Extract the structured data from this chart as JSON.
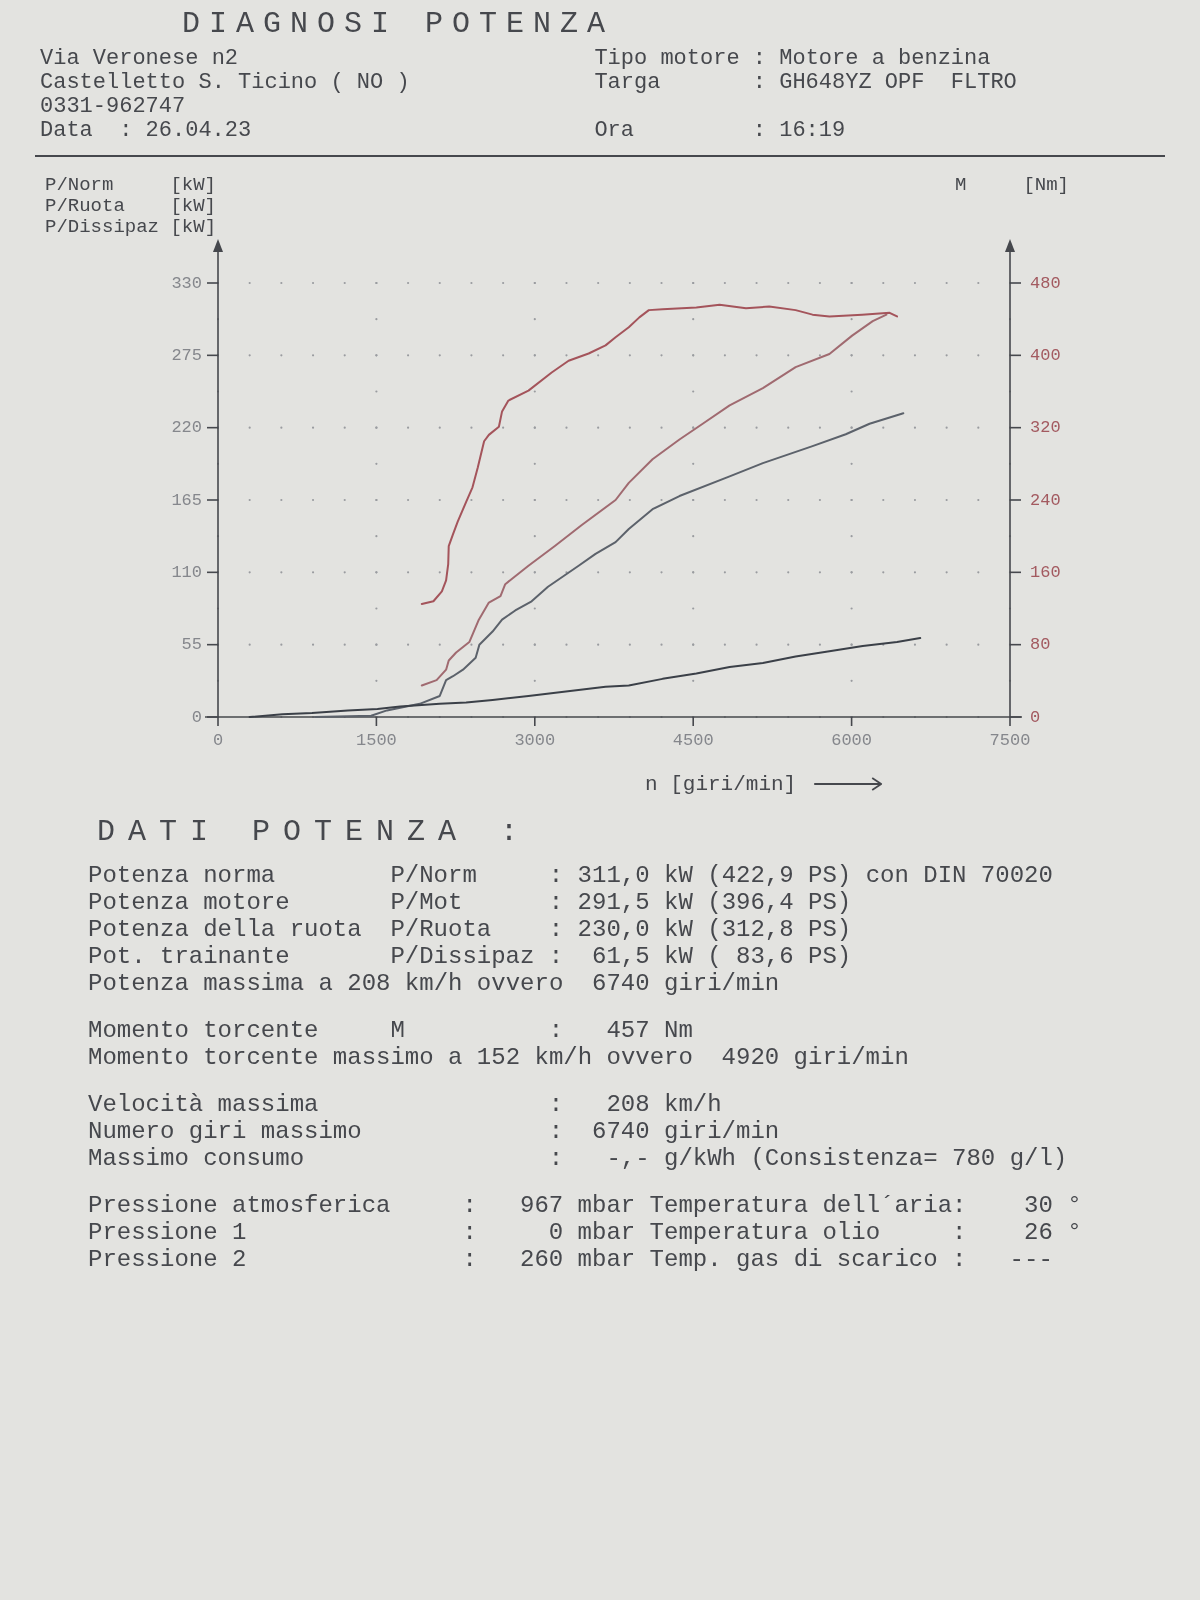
{
  "chart_data": {
    "type": "line",
    "title": "DIAGNOSI POTENZA",
    "subtitle": "Via Veronese n2                           Tipo motore : Motore a benzina\nCastelletto S. Ticino ( NO )              Targa       : GH648YZ OPF  FLTRO\n0331-962747\nData  : 26.04.23                          Ora         : 16:19",
    "xlabel": "n [giri/min]",
    "ylabel": "P/Norm     [kW]\nP/Ruota    [kW]\nP/Dissipaz [kW]",
    "y2label": "M     [Nm]",
    "xlim": [
      0,
      7500
    ],
    "xticks": [
      0,
      1500,
      3000,
      4500,
      6000,
      7500
    ],
    "ylim": [
      0,
      330
    ],
    "yticks": [
      0,
      55,
      110,
      165,
      220,
      275,
      330
    ],
    "y2lim": [
      0,
      480
    ],
    "y2ticks": [
      0,
      80,
      160,
      240,
      320,
      400,
      480
    ],
    "grid": true,
    "series": [
      {
        "color": "#a06a70",
        "x": [
          1930,
          2070,
          2160,
          2185,
          2255,
          2380,
          2470,
          2565,
          2675,
          2720,
          2940,
          3190,
          3445,
          3765,
          3890,
          4115,
          4370,
          4590,
          4845,
          5160,
          5470,
          5790,
          6005,
          6200,
          6330
        ],
        "values": [
          24,
          28,
          36,
          43,
          49,
          57,
          74,
          87,
          92,
          101,
          115,
          130,
          146,
          165,
          178,
          196,
          211,
          223,
          237,
          250,
          266,
          276,
          290,
          301,
          306
        ]
      },
      {
        "color": "#5c626b",
        "x": [
          920,
          1450,
          1600,
          1910,
          2100,
          2160,
          2225,
          2320,
          2440,
          2475,
          2600,
          2690,
          2815,
          2970,
          3125,
          3415,
          3575,
          3765,
          3890,
          4115,
          4370,
          4845,
          5160,
          5630,
          5945,
          6170,
          6490
        ],
        "values": [
          0,
          1,
          5,
          10,
          16,
          28,
          31,
          36,
          45,
          55,
          65,
          74,
          81,
          88,
          99,
          115,
          124,
          133,
          143,
          158,
          168,
          183,
          193,
          206,
          215,
          223,
          231
        ]
      },
      {
        "color": "#3b4048",
        "x": [
          300,
          610,
          890,
          1230,
          1510,
          1725,
          2100,
          2350,
          2600,
          2940,
          3255,
          3670,
          3890,
          4210,
          4530,
          4845,
          5160,
          5470,
          5790,
          6105,
          6430,
          6650
        ],
        "values": [
          0,
          2,
          3,
          5,
          6,
          8,
          10,
          11,
          13,
          16,
          19,
          23,
          24,
          29,
          33,
          38,
          41,
          46,
          50,
          54,
          57,
          60
        ]
      },
      {
        "color": "#a4545b",
        "axis": "y2",
        "x": [
          1930,
          2040,
          2120,
          2160,
          2180,
          2185,
          2225,
          2270,
          2350,
          2410,
          2460,
          2520,
          2565,
          2660,
          2690,
          2750,
          2940,
          3160,
          3320,
          3510,
          3670,
          3765,
          3890,
          3990,
          4080,
          4210,
          4530,
          4750,
          5000,
          5220,
          5470,
          5630,
          5790,
          6100,
          6360,
          6430
        ],
        "values": [
          125,
          128,
          139,
          151,
          169,
          189,
          202,
          216,
          238,
          254,
          276,
          305,
          312,
          321,
          338,
          350,
          361,
          381,
          394,
          402,
          411,
          420,
          431,
          442,
          450,
          451,
          453,
          456,
          452,
          454,
          450,
          445,
          443,
          445,
          447,
          443
        ]
      }
    ],
    "annotations": [
      "DATI POTENZA :",
      "Potenza norma        P/Norm     : 311,0 kW (422,9 PS) con DIN 70020\nPotenza motore       P/Mot      : 291,5 kW (396,4 PS)\nPotenza della ruota  P/Ruota    : 230,0 kW (312,8 PS)\nPot. trainante       P/Dissipaz :  61,5 kW ( 83,6 PS)\nPotenza massima a 208 km/h ovvero  6740 giri/min",
      "Momento torcente     M          :   457 Nm\nMomento torcente massimo a 152 km/h ovvero  4920 giri/min",
      "Velocità massima                :   208 km/h\nNumero giri massimo             :  6740 giri/min\nMassimo consumo                 :   -,- g/kWh (Consistenza= 780 g/l)",
      "Pressione atmosferica     :   967 mbar Temperatura dell´aria:    30 °\nPressione 1               :     0 mbar Temperatura olio     :    26 °\nPressione 2               :   260 mbar Temp. gas di scarico :   ---"
    ]
  }
}
